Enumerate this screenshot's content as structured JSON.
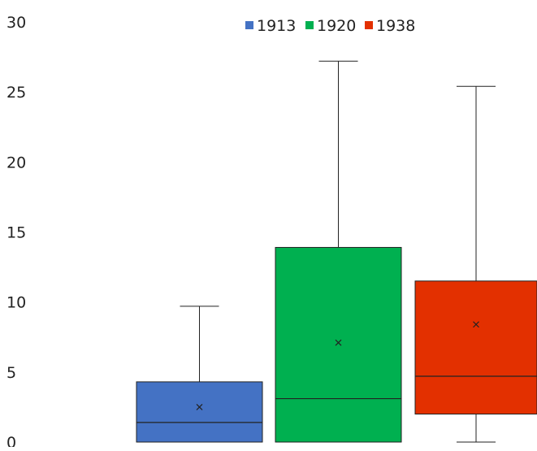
{
  "chart_data": {
    "type": "box",
    "title": "",
    "xlabel": "",
    "ylabel": "",
    "ylim": [
      0,
      30
    ],
    "y_ticks": [
      "0",
      "5",
      "10",
      "15",
      "20",
      "25",
      "30"
    ],
    "grid": false,
    "legend_position": "top-center",
    "series": [
      {
        "name": "1913",
        "color": "#4472C4",
        "min": 0,
        "q1": 0,
        "median": 1.4,
        "q3": 4.3,
        "max": 9.7,
        "mean": 2.5
      },
      {
        "name": "1920",
        "color": "#00B050",
        "min": 0,
        "q1": 0,
        "median": 3.1,
        "q3": 13.9,
        "max": 27.2,
        "mean": 7.1
      },
      {
        "name": "1938",
        "color": "#E33000",
        "min": 0,
        "q1": 2.0,
        "median": 4.7,
        "q3": 11.5,
        "max": 25.4,
        "mean": 8.4
      }
    ]
  }
}
